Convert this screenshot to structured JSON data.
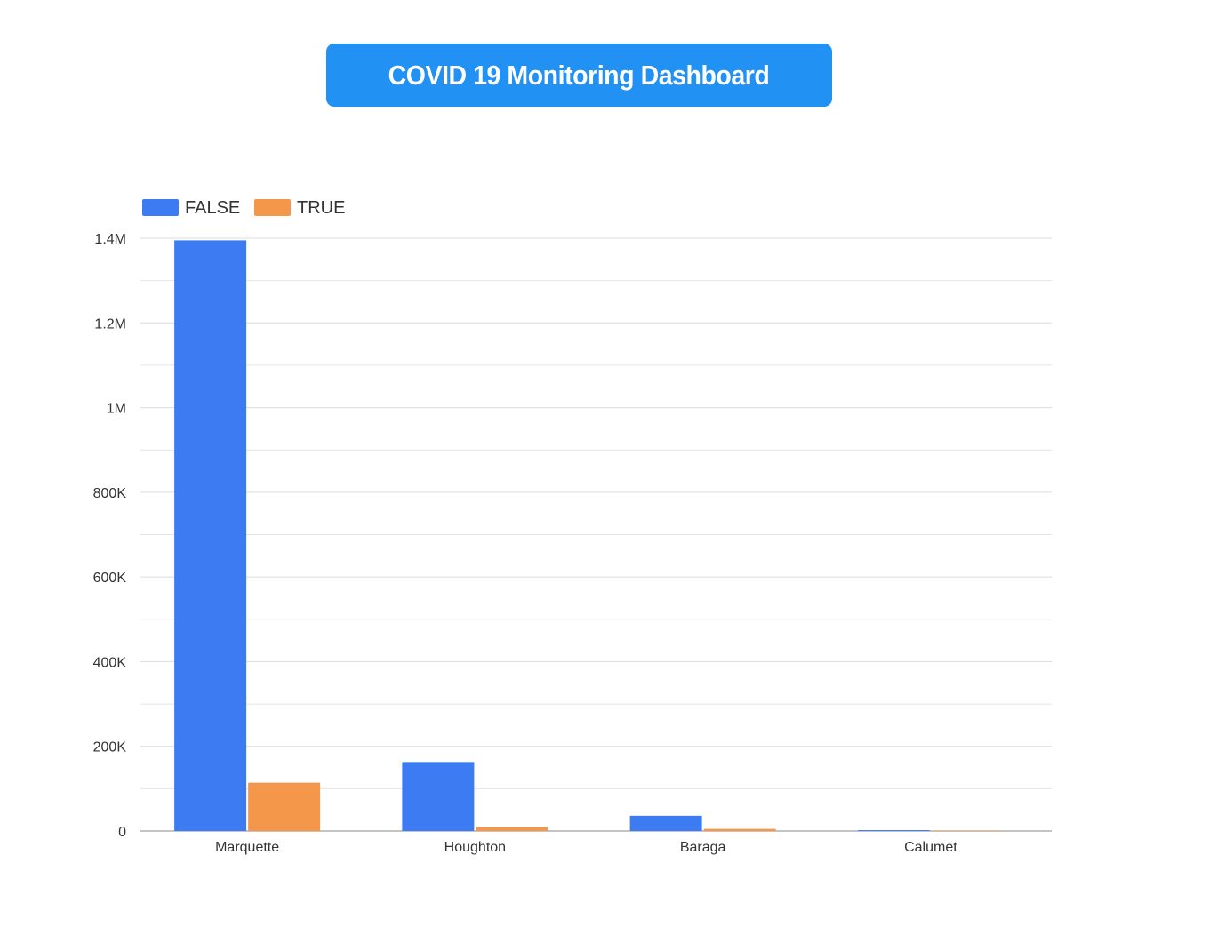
{
  "header": {
    "title": "COVID 19 Monitoring Dashboard",
    "accent_color": "#2191f3"
  },
  "chart_data": {
    "type": "bar",
    "categories": [
      "Marquette",
      "Houghton",
      "Baraga",
      "Calumet"
    ],
    "series": [
      {
        "name": "FALSE",
        "color": "#3d7bf2",
        "values": [
          1395000,
          163000,
          36000,
          2000
        ]
      },
      {
        "name": "TRUE",
        "color": "#f4974b",
        "values": [
          114000,
          9000,
          5000,
          500
        ]
      }
    ],
    "title": "",
    "xlabel": "",
    "ylabel": "",
    "ylim": [
      0,
      1400000
    ],
    "y_ticks": [
      0,
      200000,
      400000,
      600000,
      800000,
      1000000,
      1200000,
      1400000
    ],
    "y_tick_labels": [
      "0",
      "200K",
      "400K",
      "600K",
      "800K",
      "1M",
      "1.2M",
      "1.4M"
    ],
    "grid": true,
    "legend_position": "top-left"
  }
}
